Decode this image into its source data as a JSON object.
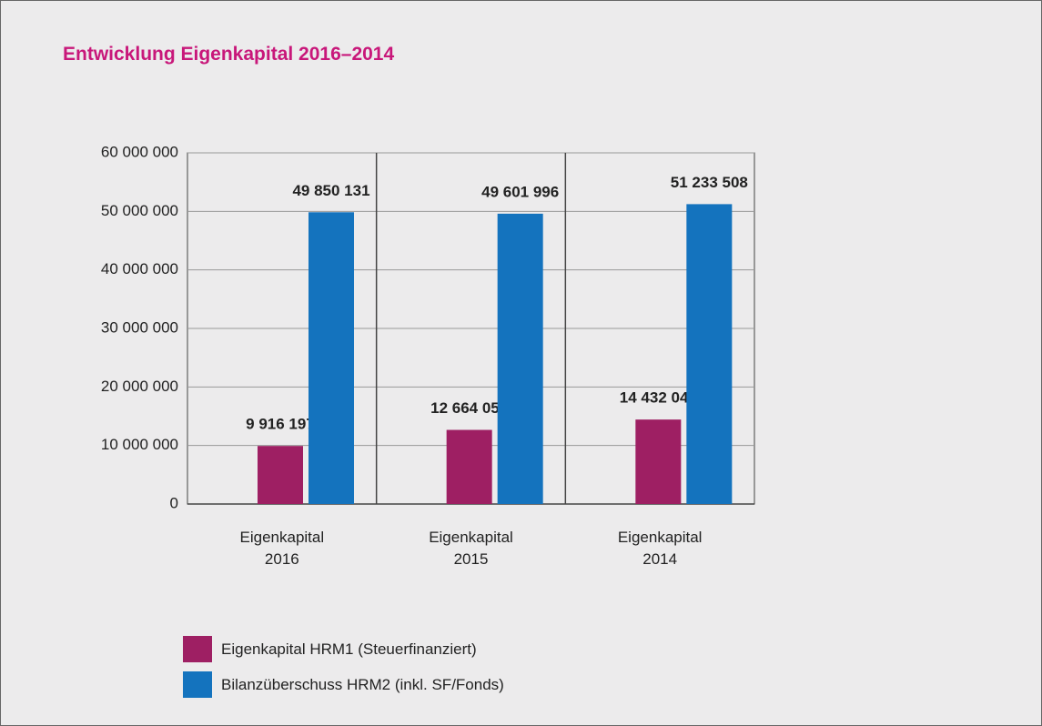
{
  "chart_data": {
    "type": "bar",
    "title": "Entwicklung Eigenkapital 2016–2014",
    "categories": [
      "Eigenkapital\n2016",
      "Eigenkapital\n2015",
      "Eigenkapital\n2014"
    ],
    "series": [
      {
        "name": "Eigenkapital HRM1 (Steuerfinanziert)",
        "color": "#9e1f63",
        "values": [
          9916197,
          12664050,
          14432044
        ],
        "value_labels": [
          "9 916 197",
          "12 664 050",
          "14 432 044"
        ]
      },
      {
        "name": "Bilanzüberschuss HRM2 (inkl. SF/Fonds)",
        "color": "#1473be",
        "values": [
          49850131,
          49601996,
          51233508
        ],
        "value_labels": [
          "49 850 131",
          "49 601 996",
          "51 233 508"
        ]
      }
    ],
    "ylim": [
      0,
      60000000
    ],
    "yticks": [
      {
        "value": 0,
        "label": "0"
      },
      {
        "value": 10000000,
        "label": "10 000 000"
      },
      {
        "value": 20000000,
        "label": "20 000 000"
      },
      {
        "value": 30000000,
        "label": "30 000 000"
      },
      {
        "value": 40000000,
        "label": "40 000 000"
      },
      {
        "value": 50000000,
        "label": "50 000 000"
      },
      {
        "value": 60000000,
        "label": "60 000 000"
      }
    ],
    "grid": true
  }
}
